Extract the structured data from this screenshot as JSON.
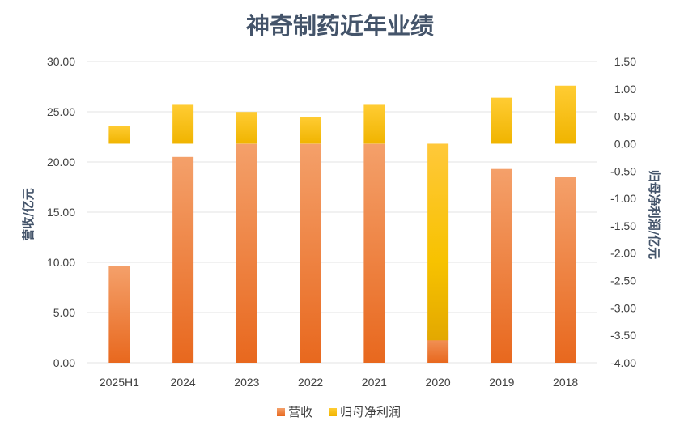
{
  "chart_data": {
    "type": "bar",
    "title": "神奇制药近年业绩",
    "categories": [
      "2025H1",
      "2024",
      "2023",
      "2022",
      "2021",
      "2020",
      "2019",
      "2018"
    ],
    "series": [
      {
        "name": "营收",
        "axis": "left",
        "values": [
          9.6,
          20.5,
          21.8,
          21.8,
          21.8,
          3.2,
          19.3,
          18.5
        ]
      },
      {
        "name": "归母净利润",
        "axis": "right",
        "values": [
          0.33,
          0.71,
          0.58,
          0.49,
          0.71,
          -3.59,
          0.84,
          1.06
        ]
      }
    ],
    "y_left": {
      "label": "营收/亿元",
      "ylim": [
        0,
        30
      ],
      "ticks": [
        "0.00",
        "5.00",
        "10.00",
        "15.00",
        "20.00",
        "25.00",
        "30.00"
      ]
    },
    "y_right": {
      "label": "归母净利润/亿元",
      "ylim": [
        -4,
        1.5
      ],
      "ticks": [
        "-4.00",
        "-3.50",
        "-3.00",
        "-2.50",
        "-2.00",
        "-1.50",
        "-1.00",
        "-0.50",
        "0.00",
        "0.50",
        "1.00",
        "1.50"
      ]
    },
    "grid": true,
    "legend_position": "bottom",
    "colors": {
      "revenue_top": "#f4a06a",
      "revenue_bottom": "#e8681e",
      "profit_top": "#ffcc33",
      "profit_bottom": "#f0b400",
      "title": "#44546a"
    }
  }
}
